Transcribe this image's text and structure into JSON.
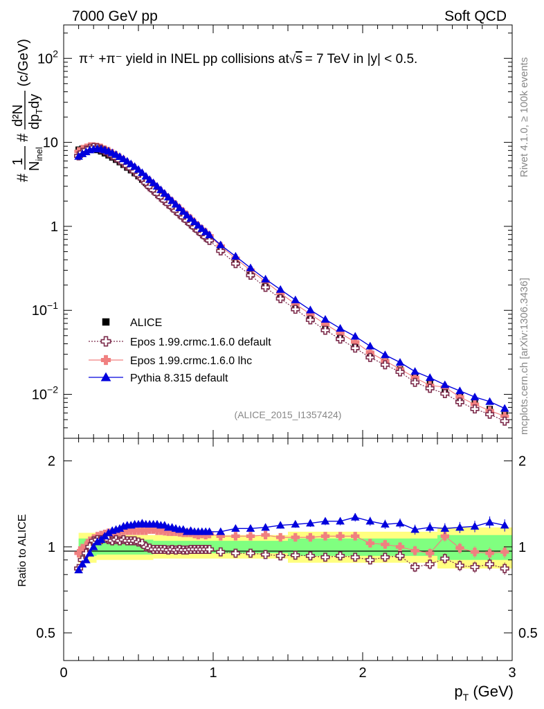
{
  "header": {
    "left": "7000 GeV pp",
    "right": "Soft QCD"
  },
  "side_labels": {
    "rivet": "Rivet 4.1.0, ≥ 100k events",
    "mcplots": "mcplots.cern.ch [arXiv:1306.3436]"
  },
  "chart_data": [
    {
      "type": "line",
      "title": "π⁺ +π⁻ yield in INEL pp collisions at√s = 7 TeV in |y| < 0.5.",
      "title_parts": {
        "pre": "π⁺ +π⁻ yield in INEL pp collisions at",
        "sqrt": "√",
        "s": "s",
        "post": "= 7 TeV in |y| < 0.5."
      },
      "ylabel": "#1/N_inel #d²N/dp_T dy (c/GeV)",
      "ylabel_parts": {
        "hash": "#",
        "one": "1",
        "n": "N",
        "inel": "inel",
        "d2n": "d²N",
        "dptdy": "dp",
        "t": "T",
        "dy": "dy",
        "unit": "(c/GeV)"
      },
      "yscale": "log",
      "ylim": [
        0.003,
        250
      ],
      "xlim": [
        0,
        3
      ],
      "ytick_labels": [
        {
          "value": 100,
          "base": "10",
          "exp": "2"
        },
        {
          "value": 10,
          "base": "10",
          "exp": ""
        },
        {
          "value": 1,
          "base": "1",
          "exp": ""
        },
        {
          "value": 0.1,
          "base": "10",
          "exp": "−1"
        },
        {
          "value": 0.01,
          "base": "10",
          "exp": "−2"
        }
      ],
      "watermark": "(ALICE_2015_I1357424)",
      "legend": [
        {
          "name": "ALICE",
          "marker": "square"
        },
        {
          "name": "Epos 1.99.crmc.1.6.0 default",
          "marker": "open-cross"
        },
        {
          "name": "Epos 1.99.crmc.1.6.0 lhc",
          "marker": "filled-cross"
        },
        {
          "name": "Pythia 8.315 default",
          "marker": "triangle"
        }
      ],
      "x": [
        0.1,
        0.125,
        0.15,
        0.175,
        0.2,
        0.225,
        0.25,
        0.275,
        0.3,
        0.325,
        0.35,
        0.375,
        0.4,
        0.425,
        0.45,
        0.475,
        0.5,
        0.525,
        0.55,
        0.575,
        0.6,
        0.625,
        0.65,
        0.675,
        0.7,
        0.725,
        0.75,
        0.775,
        0.8,
        0.825,
        0.85,
        0.875,
        0.9,
        0.925,
        0.95,
        0.975,
        1.05,
        1.15,
        1.25,
        1.35,
        1.45,
        1.55,
        1.65,
        1.75,
        1.85,
        1.95,
        2.05,
        2.15,
        2.25,
        2.35,
        2.45,
        2.55,
        2.65,
        2.75,
        2.85,
        2.95
      ],
      "series": [
        {
          "name": "ALICE",
          "color": "#000000",
          "values": [
            8.2,
            8.4,
            8.5,
            8.5,
            8.3,
            8.1,
            7.8,
            7.4,
            7.0,
            6.6,
            6.2,
            5.8,
            5.4,
            5.0,
            4.65,
            4.3,
            3.95,
            3.6,
            3.3,
            3.0,
            2.75,
            2.5,
            2.28,
            2.08,
            1.9,
            1.73,
            1.58,
            1.44,
            1.31,
            1.2,
            1.09,
            0.995,
            0.91,
            0.83,
            0.76,
            0.695,
            0.53,
            0.38,
            0.275,
            0.2,
            0.148,
            0.11,
            0.083,
            0.063,
            0.049,
            0.0385,
            0.0305,
            0.0245,
            0.0199,
            0.0163,
            0.0135,
            0.0112,
            0.0094,
            0.0079,
            0.0067,
            0.0057
          ]
        },
        {
          "name": "Epos 1.99.crmc.1.6.0 default",
          "color": "#7b2a4a",
          "values": [
            6.9,
            7.6,
            8.1,
            8.5,
            8.7,
            8.6,
            8.3,
            7.9,
            7.45,
            6.95,
            6.55,
            6.1,
            5.7,
            5.25,
            4.9,
            4.5,
            4.1,
            3.7,
            3.3,
            2.96,
            2.7,
            2.45,
            2.23,
            2.03,
            1.85,
            1.7,
            1.54,
            1.41,
            1.28,
            1.17,
            1.07,
            0.975,
            0.89,
            0.815,
            0.745,
            0.68,
            0.51,
            0.36,
            0.262,
            0.188,
            0.138,
            0.103,
            0.077,
            0.058,
            0.0455,
            0.0355,
            0.0275,
            0.0225,
            0.0185,
            0.0139,
            0.0118,
            0.0102,
            0.0081,
            0.0067,
            0.0058,
            0.0048
          ]
        },
        {
          "name": "Epos 1.99.crmc.1.6.0 lhc",
          "color": "#f08080",
          "values": [
            7.8,
            8.3,
            8.6,
            8.9,
            8.9,
            8.8,
            8.6,
            8.2,
            7.85,
            7.4,
            7.0,
            6.55,
            6.15,
            5.7,
            5.3,
            4.9,
            4.5,
            4.1,
            3.75,
            3.45,
            3.15,
            2.85,
            2.6,
            2.36,
            2.15,
            1.96,
            1.78,
            1.62,
            1.47,
            1.34,
            1.22,
            1.1,
            1.0,
            0.92,
            0.84,
            0.77,
            0.58,
            0.415,
            0.3,
            0.22,
            0.16,
            0.119,
            0.09,
            0.0685,
            0.0535,
            0.042,
            0.0315,
            0.025,
            0.02,
            0.0158,
            0.0128,
            0.0122,
            0.0093,
            0.0076,
            0.0064,
            0.0055
          ]
        },
        {
          "name": "Pythia 8.315 default",
          "color": "#0000dd",
          "values": [
            6.8,
            7.3,
            7.7,
            8.1,
            8.3,
            8.4,
            8.3,
            8.1,
            7.85,
            7.5,
            7.15,
            6.75,
            6.35,
            5.95,
            5.55,
            5.15,
            4.75,
            4.35,
            3.95,
            3.6,
            3.3,
            3.0,
            2.72,
            2.47,
            2.23,
            2.02,
            1.83,
            1.66,
            1.5,
            1.36,
            1.24,
            1.13,
            1.03,
            0.94,
            0.86,
            0.79,
            0.6,
            0.44,
            0.32,
            0.235,
            0.177,
            0.133,
            0.101,
            0.078,
            0.061,
            0.049,
            0.0375,
            0.0295,
            0.024,
            0.0187,
            0.0158,
            0.013,
            0.011,
            0.0093,
            0.0082,
            0.0068
          ]
        }
      ]
    },
    {
      "type": "line",
      "ylabel": "Ratio to ALICE",
      "xlabel": "p_T (GeV)",
      "xlabel_parts": {
        "p": "p",
        "t": "T",
        "unit": " (GeV)"
      },
      "ylim": [
        0.4,
        2.4
      ],
      "yscale": "log",
      "xlim": [
        0,
        3
      ],
      "ytick_labels": [
        {
          "value": 2,
          "label": "2"
        },
        {
          "value": 1,
          "label": "1"
        },
        {
          "value": 0.5,
          "label": "0.5"
        }
      ],
      "xtick_labels": [
        {
          "value": 0,
          "label": "0"
        },
        {
          "value": 1,
          "label": "1"
        },
        {
          "value": 2,
          "label": "2"
        },
        {
          "value": 3,
          "label": "3"
        }
      ],
      "uncertainty_bands": [
        {
          "x_from": 0.1,
          "x_to": 0.22,
          "yellow": [
            0.88,
            1.12
          ],
          "green": [
            0.93,
            1.07
          ]
        },
        {
          "x_from": 0.22,
          "x_to": 0.6,
          "yellow": [
            0.9,
            1.1
          ],
          "green": [
            0.94,
            1.06
          ]
        },
        {
          "x_from": 0.6,
          "x_to": 1.5,
          "yellow": [
            0.91,
            1.1
          ],
          "green": [
            0.95,
            1.05
          ]
        },
        {
          "x_from": 1.5,
          "x_to": 2.5,
          "yellow": [
            0.88,
            1.13
          ],
          "green": [
            0.93,
            1.07
          ]
        },
        {
          "x_from": 2.5,
          "x_to": 3.0,
          "yellow": [
            0.84,
            1.17
          ],
          "green": [
            0.9,
            1.1
          ]
        }
      ],
      "series": [
        {
          "name": "Epos 1.99.crmc.1.6.0 default",
          "color": "#7b2a4a",
          "values": [
            0.84,
            0.9,
            0.95,
            1.0,
            1.05,
            1.06,
            1.06,
            1.07,
            1.06,
            1.05,
            1.06,
            1.05,
            1.06,
            1.05,
            1.05,
            1.05,
            1.04,
            1.03,
            1.0,
            0.99,
            0.98,
            0.98,
            0.98,
            0.98,
            0.975,
            0.98,
            0.975,
            0.98,
            0.975,
            0.975,
            0.98,
            0.98,
            0.98,
            0.98,
            0.98,
            0.98,
            0.96,
            0.95,
            0.95,
            0.94,
            0.93,
            0.935,
            0.93,
            0.92,
            0.93,
            0.92,
            0.9,
            0.92,
            0.93,
            0.85,
            0.87,
            0.91,
            0.86,
            0.85,
            0.87,
            0.84
          ]
        },
        {
          "name": "Epos 1.99.crmc.1.6.0 lhc",
          "color": "#f08080",
          "values": [
            0.95,
            0.99,
            1.01,
            1.05,
            1.07,
            1.09,
            1.1,
            1.11,
            1.12,
            1.12,
            1.13,
            1.13,
            1.14,
            1.14,
            1.14,
            1.14,
            1.14,
            1.14,
            1.14,
            1.15,
            1.15,
            1.14,
            1.14,
            1.135,
            1.13,
            1.13,
            1.13,
            1.125,
            1.12,
            1.12,
            1.12,
            1.11,
            1.1,
            1.11,
            1.1,
            1.11,
            1.09,
            1.09,
            1.09,
            1.1,
            1.08,
            1.08,
            1.08,
            1.09,
            1.09,
            1.09,
            1.03,
            1.02,
            1.0,
            0.97,
            0.95,
            1.09,
            0.99,
            0.96,
            0.95,
            0.96
          ]
        },
        {
          "name": "Pythia 8.315 default",
          "color": "#0000dd",
          "values": [
            0.83,
            0.87,
            0.9,
            0.95,
            1.0,
            1.04,
            1.06,
            1.09,
            1.12,
            1.14,
            1.15,
            1.16,
            1.18,
            1.19,
            1.19,
            1.2,
            1.2,
            1.21,
            1.2,
            1.2,
            1.2,
            1.2,
            1.19,
            1.19,
            1.17,
            1.17,
            1.16,
            1.15,
            1.15,
            1.13,
            1.14,
            1.13,
            1.13,
            1.13,
            1.13,
            1.13,
            1.13,
            1.16,
            1.16,
            1.17,
            1.19,
            1.2,
            1.21,
            1.23,
            1.23,
            1.27,
            1.23,
            1.2,
            1.21,
            1.15,
            1.17,
            1.16,
            1.17,
            1.18,
            1.22,
            1.19
          ]
        }
      ]
    }
  ]
}
